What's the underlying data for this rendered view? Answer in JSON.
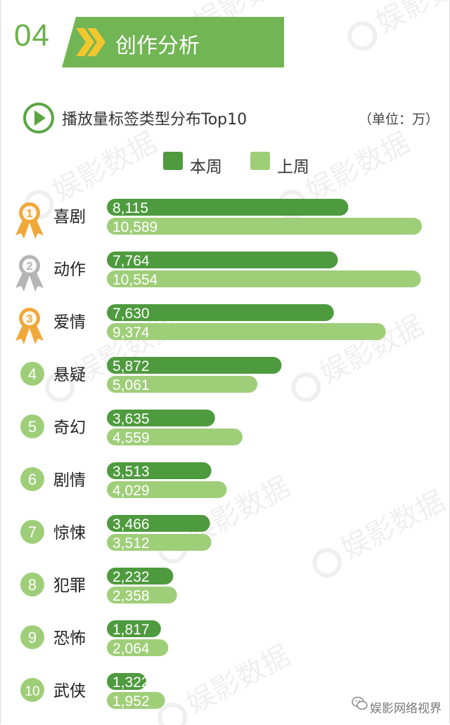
{
  "header": {
    "section_number": "04",
    "section_title": "创作分析"
  },
  "chart_title": "播放量标签类型分布Top10",
  "unit_label": "（单位：万）",
  "legend": {
    "current": "本周",
    "previous": "上周"
  },
  "colors": {
    "current": "#4e9a3e",
    "previous": "#9fce79",
    "header": "#72b554",
    "gold": "#f0a83b",
    "silver": "#b5b5b5",
    "rank_circle": "#9fce79"
  },
  "watermark": "娱影数据",
  "footer": {
    "account": "娱影网络视界",
    "icon": "wechat-icon"
  },
  "chart_data": {
    "type": "bar",
    "orientation": "horizontal",
    "categories": [
      "喜剧",
      "动作",
      "爱情",
      "悬疑",
      "奇幻",
      "剧情",
      "惊悚",
      "犯罪",
      "恐怖",
      "武侠"
    ],
    "ranks": [
      "1",
      "2",
      "3",
      "4",
      "5",
      "6",
      "7",
      "8",
      "9",
      "10"
    ],
    "series": [
      {
        "name": "本周",
        "values": [
          8115,
          7764,
          7630,
          5872,
          3635,
          3513,
          3466,
          2232,
          1817,
          1322
        ],
        "labels": [
          "8,115",
          "7,764",
          "7,630",
          "5,872",
          "3,635",
          "3,513",
          "3,466",
          "2,232",
          "1,817",
          "1,322"
        ]
      },
      {
        "name": "上周",
        "values": [
          10589,
          10554,
          9374,
          5061,
          4559,
          4029,
          3512,
          2358,
          2064,
          1952
        ],
        "labels": [
          "10,589",
          "10,554",
          "9,374",
          "5,061",
          "4,559",
          "4,029",
          "3,512",
          "2,358",
          "2,064",
          "1,952"
        ]
      }
    ],
    "xlim": [
      0,
      10589
    ],
    "grid": false,
    "legend_position": "top-center"
  }
}
